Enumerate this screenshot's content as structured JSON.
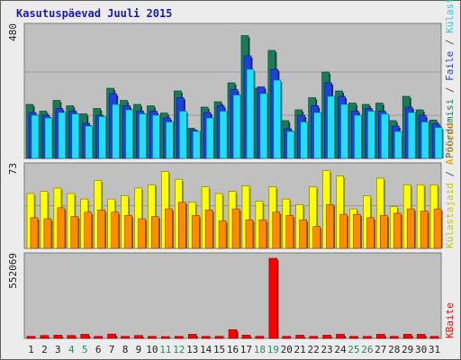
{
  "title": "Kasutuspäevad Juuli 2015",
  "colors": {
    "frame_bg": "#ececec",
    "panel_bg": "#c0c0c0",
    "gridline": "#9a9a9a",
    "visits": "#1a7a5a",
    "pages": "#1f3fe0",
    "files": "#22ddff",
    "hosts": "#ff8c00",
    "kbytes": "#ff0000",
    "hits_yellow": "#ffff00",
    "day_label": "#222222",
    "weekend_label": "#2a8a5a"
  },
  "legend_top": [
    {
      "text": "Pöördumisi",
      "color": "#1a7a5a"
    },
    {
      "text": " / ",
      "color": "#555555"
    },
    {
      "text": "Faile",
      "color": "#1f3fe0"
    },
    {
      "text": " / ",
      "color": "#555555"
    },
    {
      "text": "Külastusi",
      "color": "#22ccee"
    }
  ],
  "legend_mid": [
    {
      "text": "Külastajaid",
      "color": "#c8c800"
    },
    {
      "text": " / ",
      "color": "#555555"
    },
    {
      "text": "Aruteid",
      "color": "#ff8c00"
    }
  ],
  "legend_bottom": [
    {
      "text": "KBaite",
      "color": "#ff0000"
    }
  ],
  "chart_data": [
    {
      "type": "bar",
      "panel": "top",
      "ymax_label": "480",
      "ylim": [
        0,
        480
      ],
      "categories": [
        "1",
        "2",
        "3",
        "4",
        "5",
        "6",
        "7",
        "8",
        "9",
        "10",
        "11",
        "12",
        "13",
        "14",
        "15",
        "16",
        "17",
        "18",
        "19",
        "20",
        "21",
        "22",
        "23",
        "24",
        "25",
        "26",
        "27",
        "28",
        "29",
        "30",
        "31"
      ],
      "series": [
        {
          "name": "Pöördumisi",
          "values": [
            200,
            175,
            215,
            195,
            165,
            185,
            260,
            215,
            200,
            195,
            168,
            250,
            112,
            190,
            210,
            280,
            455,
            260,
            400,
            140,
            180,
            225,
            320,
            250,
            205,
            200,
            205,
            140,
            230,
            180,
            142
          ]
        },
        {
          "name": "Faile",
          "values": [
            170,
            160,
            185,
            175,
            130,
            160,
            240,
            195,
            175,
            175,
            150,
            225,
            105,
            170,
            195,
            255,
            380,
            265,
            330,
            110,
            160,
            195,
            280,
            230,
            175,
            185,
            175,
            120,
            190,
            160,
            128
          ]
        },
        {
          "name": "Külastusi",
          "values": [
            160,
            150,
            170,
            165,
            120,
            155,
            200,
            180,
            165,
            160,
            135,
            175,
            100,
            150,
            175,
            235,
            330,
            240,
            290,
            100,
            135,
            170,
            230,
            200,
            160,
            175,
            165,
            100,
            170,
            135,
            115
          ]
        }
      ]
    },
    {
      "type": "bar",
      "panel": "middle",
      "ymax_label": "73",
      "ylim": [
        0,
        73
      ],
      "categories": [
        "1",
        "2",
        "3",
        "4",
        "5",
        "6",
        "7",
        "8",
        "9",
        "10",
        "11",
        "12",
        "13",
        "14",
        "15",
        "16",
        "17",
        "18",
        "19",
        "20",
        "21",
        "22",
        "23",
        "24",
        "25",
        "26",
        "27",
        "28",
        "29",
        "30",
        "31"
      ],
      "series": [
        {
          "name": "Külastajaid",
          "values": [
            50,
            52,
            55,
            50,
            45,
            62,
            45,
            48,
            55,
            58,
            70,
            63,
            42,
            56,
            50,
            52,
            57,
            43,
            56,
            45,
            40,
            56,
            71,
            66,
            36,
            48,
            64,
            38,
            58,
            58,
            58
          ]
        },
        {
          "name": "Aruteid",
          "values": [
            28,
            27,
            37,
            29,
            33,
            35,
            33,
            30,
            27,
            29,
            36,
            42,
            30,
            35,
            25,
            36,
            26,
            26,
            33,
            30,
            26,
            20,
            40,
            31,
            31,
            28,
            30,
            32,
            36,
            34,
            36
          ]
        }
      ]
    },
    {
      "type": "bar",
      "panel": "bottom",
      "ymax_label": "552069",
      "ylim": [
        0,
        552069
      ],
      "categories": [
        "1",
        "2",
        "3",
        "4",
        "5",
        "6",
        "7",
        "8",
        "9",
        "10",
        "11",
        "12",
        "13",
        "14",
        "15",
        "16",
        "17",
        "18",
        "19",
        "20",
        "21",
        "22",
        "23",
        "24",
        "25",
        "26",
        "27",
        "28",
        "29",
        "30",
        "31"
      ],
      "series": [
        {
          "name": "KBaite",
          "values": [
            14000,
            20000,
            22000,
            20000,
            28000,
            14000,
            30000,
            14000,
            20000,
            14000,
            10000,
            14000,
            28000,
            14000,
            14000,
            60000,
            22000,
            14000,
            552069,
            14000,
            22000,
            14000,
            22000,
            28000,
            14000,
            14000,
            28000,
            14000,
            28000,
            28000,
            14000
          ]
        }
      ]
    }
  ],
  "day_labels": [
    "1",
    "2",
    "3",
    "4",
    "5",
    "6",
    "7",
    "8",
    "9",
    "10",
    "11",
    "12",
    "13",
    "14",
    "15",
    "16",
    "17",
    "18",
    "19",
    "20",
    "21",
    "22",
    "23",
    "24",
    "25",
    "26",
    "27",
    "28",
    "29",
    "30",
    "31"
  ],
  "weekend_days": [
    4,
    5,
    11,
    12,
    18,
    19,
    25,
    26
  ]
}
